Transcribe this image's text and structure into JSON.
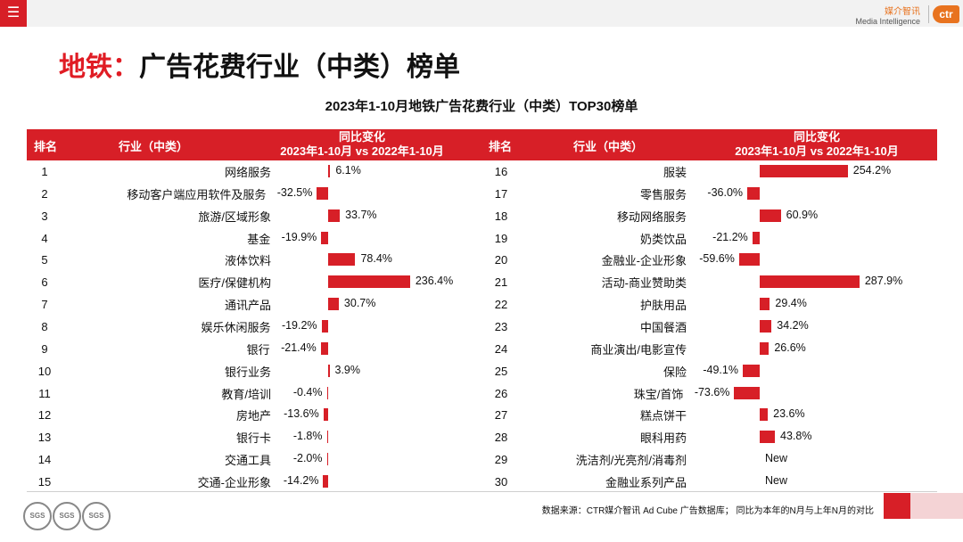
{
  "app": {
    "menu_icon": "hamburger-icon",
    "brand_cn": "媒介智讯",
    "brand_en": "Media Intelligence",
    "brand_logo": "ctr"
  },
  "page": {
    "title_accent": "地铁：",
    "title_main": "广告花费行业（中类）榜单"
  },
  "colors": {
    "accent": "#d71f27",
    "header_text": "#ffffff",
    "pink": "#f4d3d5"
  },
  "chart_data": {
    "type": "bar",
    "title": "2023年1-10月地铁广告花费行业（中类）TOP30榜单",
    "headers": {
      "rank": "排名",
      "industry": "行业（中类）",
      "change_line1": "同比变化",
      "change_line2": "2023年1-10月 vs 2022年1-10月"
    },
    "rows": [
      {
        "rank": "1",
        "industry": "网络服务",
        "change": 6.1,
        "label": "6.1%"
      },
      {
        "rank": "2",
        "industry": "移动客户端应用软件及服务",
        "change": -32.5,
        "label": "-32.5%"
      },
      {
        "rank": "3",
        "industry": "旅游/区域形象",
        "change": 33.7,
        "label": "33.7%"
      },
      {
        "rank": "4",
        "industry": "基金",
        "change": -19.9,
        "label": "-19.9%"
      },
      {
        "rank": "5",
        "industry": "液体饮料",
        "change": 78.4,
        "label": "78.4%"
      },
      {
        "rank": "6",
        "industry": "医疗/保健机构",
        "change": 236.4,
        "label": "236.4%"
      },
      {
        "rank": "7",
        "industry": "通讯产品",
        "change": 30.7,
        "label": "30.7%"
      },
      {
        "rank": "8",
        "industry": "娱乐休闲服务",
        "change": -19.2,
        "label": "-19.2%"
      },
      {
        "rank": "9",
        "industry": "银行",
        "change": -21.4,
        "label": "-21.4%"
      },
      {
        "rank": "10",
        "industry": "银行业务",
        "change": 3.9,
        "label": "3.9%"
      },
      {
        "rank": "11",
        "industry": "教育/培训",
        "change": -0.4,
        "label": "-0.4%"
      },
      {
        "rank": "12",
        "industry": "房地产",
        "change": -13.6,
        "label": "-13.6%"
      },
      {
        "rank": "13",
        "industry": "银行卡",
        "change": -1.8,
        "label": "-1.8%"
      },
      {
        "rank": "14",
        "industry": "交通工具",
        "change": -2.0,
        "label": "-2.0%"
      },
      {
        "rank": "15",
        "industry": "交通-企业形象",
        "change": -14.2,
        "label": "-14.2%"
      },
      {
        "rank": "16",
        "industry": "服装",
        "change": 254.2,
        "label": "254.2%"
      },
      {
        "rank": "17",
        "industry": "零售服务",
        "change": -36.0,
        "label": "-36.0%"
      },
      {
        "rank": "18",
        "industry": "移动网络服务",
        "change": 60.9,
        "label": "60.9%"
      },
      {
        "rank": "19",
        "industry": "奶类饮品",
        "change": -21.2,
        "label": "-21.2%"
      },
      {
        "rank": "20",
        "industry": "金融业-企业形象",
        "change": -59.6,
        "label": "-59.6%"
      },
      {
        "rank": "21",
        "industry": "活动-商业赞助类",
        "change": 287.9,
        "label": "287.9%"
      },
      {
        "rank": "22",
        "industry": "护肤用品",
        "change": 29.4,
        "label": "29.4%"
      },
      {
        "rank": "23",
        "industry": "中国餐酒",
        "change": 34.2,
        "label": "34.2%"
      },
      {
        "rank": "24",
        "industry": "商业演出/电影宣传",
        "change": 26.6,
        "label": "26.6%"
      },
      {
        "rank": "25",
        "industry": "保险",
        "change": -49.1,
        "label": "-49.1%"
      },
      {
        "rank": "26",
        "industry": "珠宝/首饰",
        "change": -73.6,
        "label": "-73.6%"
      },
      {
        "rank": "27",
        "industry": "糕点饼干",
        "change": 23.6,
        "label": "23.6%"
      },
      {
        "rank": "28",
        "industry": "眼科用药",
        "change": 43.8,
        "label": "43.8%"
      },
      {
        "rank": "29",
        "industry": "洗洁剂/光亮剂/消毒剂",
        "change": null,
        "label": "New"
      },
      {
        "rank": "30",
        "industry": "金融业系列产品",
        "change": null,
        "label": "New"
      }
    ]
  },
  "footer": {
    "note": "数据来源：CTR媒介智讯 Ad Cube 广告数据库；  同比为本年的N月与上年N月的对比",
    "seal_text": "SGS"
  }
}
